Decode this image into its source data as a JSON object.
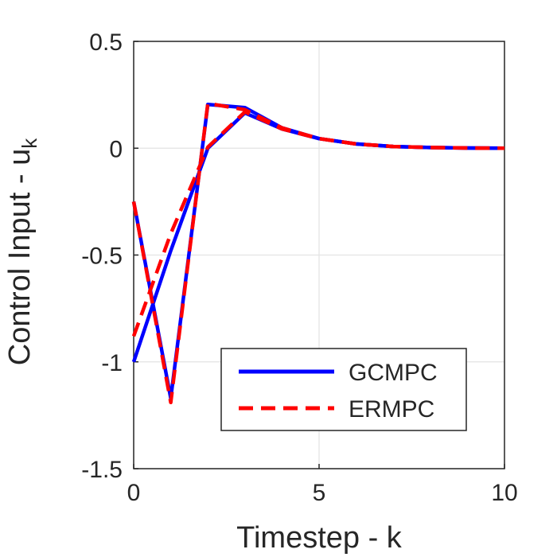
{
  "chart_data": {
    "type": "line",
    "title": "",
    "xlabel": "Timestep - k",
    "ylabel_main": "Control Input - u",
    "ylabel_sub": "k",
    "xlim": [
      0,
      10
    ],
    "ylim": [
      -1.5,
      0.5
    ],
    "xticks": [
      0,
      5,
      10
    ],
    "xtick_labels": [
      "0",
      "5",
      "10"
    ],
    "yticks": [
      -1.5,
      -1,
      -0.5,
      0,
      0.5
    ],
    "ytick_labels": [
      "-1.5",
      "-1",
      "-0.5",
      "0",
      "0.5"
    ],
    "grid": true,
    "legend_position": "bottom-right",
    "series": [
      {
        "name": "GCMPC",
        "color": "#0000ff",
        "style": "solid",
        "lines": [
          {
            "x": [
              0,
              1,
              2,
              3,
              4,
              5,
              6,
              7,
              8,
              9,
              10
            ],
            "y": [
              -1.0,
              -0.48,
              0.0,
              0.165,
              0.09,
              0.045,
              0.02,
              0.008,
              0.003,
              0.001,
              0.0
            ]
          },
          {
            "x": [
              0,
              1,
              2,
              3,
              4,
              5,
              6,
              7,
              8,
              9,
              10
            ],
            "y": [
              -0.25,
              -1.17,
              0.205,
              0.19,
              0.095,
              0.045,
              0.02,
              0.008,
              0.003,
              0.001,
              0.0
            ]
          }
        ]
      },
      {
        "name": "ERMPC",
        "color": "#ff0000",
        "style": "dashed",
        "lines": [
          {
            "x": [
              0,
              1,
              2,
              3,
              4,
              5,
              6,
              7,
              8,
              9,
              10
            ],
            "y": [
              -0.88,
              -0.4,
              0.005,
              0.17,
              0.09,
              0.045,
              0.02,
              0.008,
              0.003,
              0.001,
              0.0
            ]
          },
          {
            "x": [
              0,
              1,
              2,
              3,
              4,
              5,
              6,
              7,
              8,
              9,
              10
            ],
            "y": [
              -0.25,
              -1.19,
              0.21,
              0.18,
              0.095,
              0.045,
              0.02,
              0.008,
              0.003,
              0.001,
              0.0
            ]
          }
        ]
      }
    ]
  }
}
